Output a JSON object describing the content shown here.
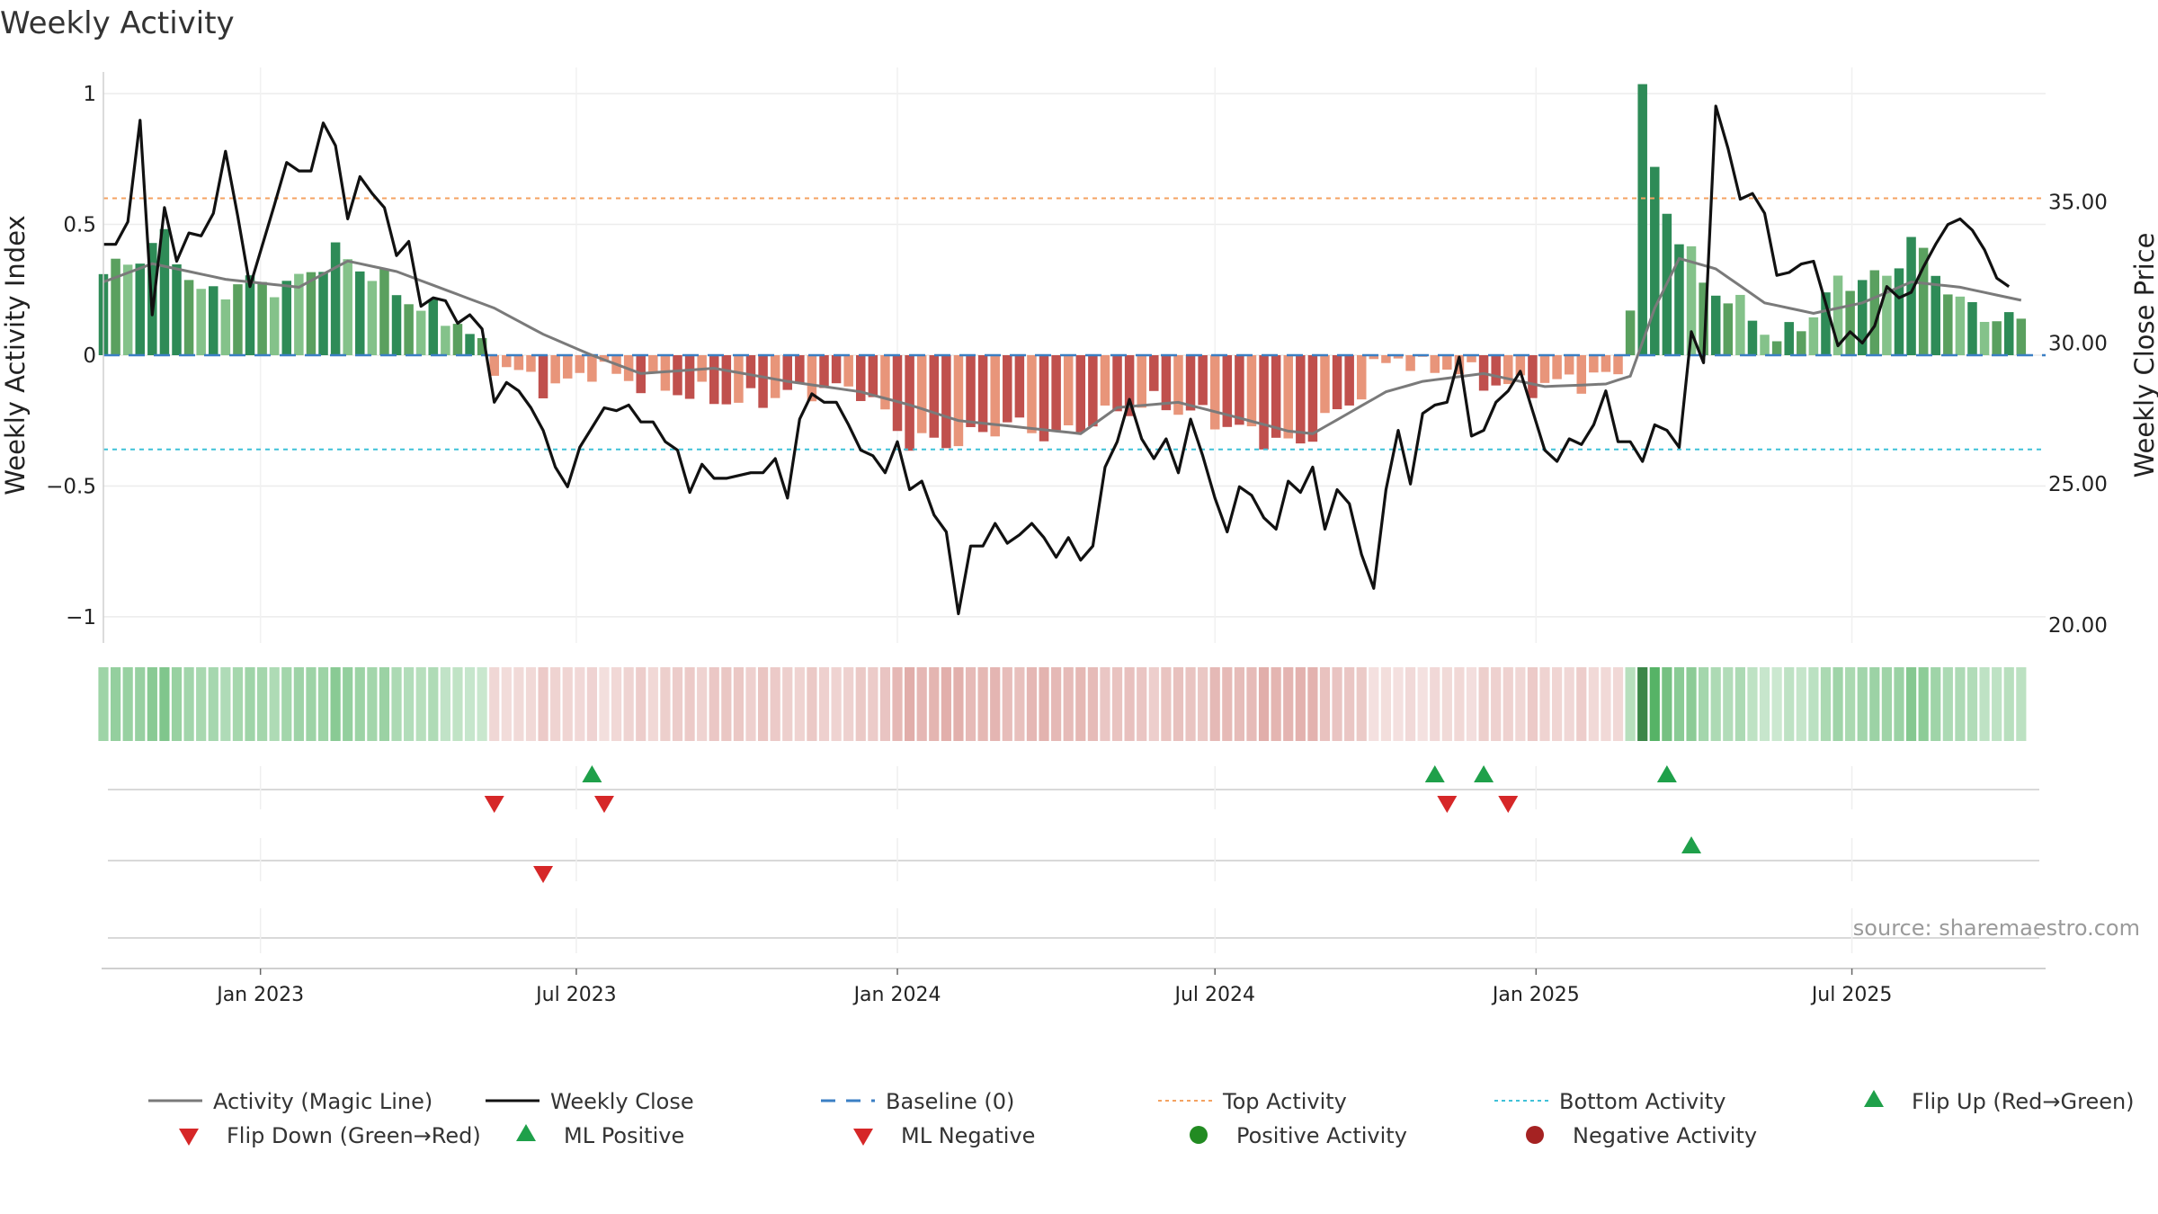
{
  "page": {
    "title": "Weekly Activity"
  },
  "chart_data": {
    "type": "bar",
    "title": "Weekly Activity",
    "ylabel_left": "Weekly Activity Index",
    "ylabel_right": "Weekly Close Price",
    "ylim_left": [
      -1.1,
      1.1
    ],
    "ylim_right": [
      20.0,
      38.4
    ],
    "yticks_left": [
      1,
      0.5,
      0,
      -0.5,
      -1
    ],
    "ytick_labels_left": [
      "1",
      "0.5",
      "0",
      "−0.5",
      "−1"
    ],
    "yticks_right": [
      35,
      30,
      25,
      20
    ],
    "ytick_labels_right": [
      "35.00",
      "30.00",
      "25.00",
      "20.00"
    ],
    "x_range": [
      "2022-10-03",
      "2025-10-20"
    ],
    "x_ticks": [
      {
        "date": "2023-01-01",
        "label": "Jan 2023"
      },
      {
        "date": "2023-07-01",
        "label": "Jul 2023"
      },
      {
        "date": "2024-01-01",
        "label": "Jan 2024"
      },
      {
        "date": "2024-07-01",
        "label": "Jul 2024"
      },
      {
        "date": "2025-01-01",
        "label": "Jan 2025"
      },
      {
        "date": "2025-07-01",
        "label": "Jul 2025"
      }
    ],
    "reference_lines": {
      "baseline": 0,
      "top_activity": 0.6,
      "bottom_activity": -0.36
    },
    "start_date": "2022-10-03",
    "week_step_days": 7,
    "weeks": 158,
    "activity_knots": [
      [
        0,
        0.31
      ],
      [
        3,
        0.38
      ],
      [
        5,
        0.45
      ],
      [
        8,
        0.23
      ],
      [
        12,
        0.28
      ],
      [
        15,
        0.26
      ],
      [
        19,
        0.39
      ],
      [
        22,
        0.31
      ],
      [
        26,
        0.18
      ],
      [
        29,
        0.13
      ],
      [
        32,
        -0.03
      ],
      [
        37,
        -0.13
      ],
      [
        40,
        -0.05
      ],
      [
        45,
        -0.12
      ],
      [
        52,
        -0.18
      ],
      [
        58,
        -0.13
      ],
      [
        62,
        -0.13
      ],
      [
        66,
        -0.33
      ],
      [
        70,
        -0.33
      ],
      [
        74,
        -0.26
      ],
      [
        78,
        -0.31
      ],
      [
        82,
        -0.23
      ],
      [
        86,
        -0.18
      ],
      [
        90,
        -0.23
      ],
      [
        94,
        -0.3
      ],
      [
        98,
        -0.35
      ],
      [
        99,
        -0.28
      ],
      [
        102,
        -0.19
      ],
      [
        104,
        -0.06
      ],
      [
        106,
        0.0
      ],
      [
        108,
        -0.06
      ],
      [
        110,
        -0.04
      ],
      [
        113,
        -0.1
      ],
      [
        116,
        -0.12
      ],
      [
        120,
        -0.1
      ],
      [
        123,
        -0.08
      ],
      [
        124,
        -0.08
      ],
      [
        125,
        0.22
      ],
      [
        126,
        1.0
      ],
      [
        127,
        0.71
      ],
      [
        128,
        0.55
      ],
      [
        131,
        0.28
      ],
      [
        135,
        0.15
      ],
      [
        137,
        0.05
      ],
      [
        140,
        0.16
      ],
      [
        142,
        0.28
      ],
      [
        146,
        0.3
      ],
      [
        148,
        0.44
      ],
      [
        152,
        0.2
      ],
      [
        155,
        0.14
      ],
      [
        157,
        0.13
      ]
    ],
    "magic_line_knots": [
      [
        0,
        0.28
      ],
      [
        4,
        0.35
      ],
      [
        10,
        0.29
      ],
      [
        16,
        0.26
      ],
      [
        20,
        0.36
      ],
      [
        24,
        0.32
      ],
      [
        28,
        0.25
      ],
      [
        32,
        0.18
      ],
      [
        36,
        0.08
      ],
      [
        40,
        0.0
      ],
      [
        44,
        -0.07
      ],
      [
        50,
        -0.05
      ],
      [
        56,
        -0.1
      ],
      [
        62,
        -0.14
      ],
      [
        66,
        -0.19
      ],
      [
        70,
        -0.25
      ],
      [
        76,
        -0.28
      ],
      [
        80,
        -0.3
      ],
      [
        83,
        -0.2
      ],
      [
        88,
        -0.18
      ],
      [
        93,
        -0.24
      ],
      [
        97,
        -0.29
      ],
      [
        99,
        -0.3
      ],
      [
        102,
        -0.22
      ],
      [
        105,
        -0.14
      ],
      [
        108,
        -0.1
      ],
      [
        113,
        -0.07
      ],
      [
        118,
        -0.12
      ],
      [
        123,
        -0.11
      ],
      [
        125,
        -0.08
      ],
      [
        127,
        0.18
      ],
      [
        129,
        0.37
      ],
      [
        132,
        0.33
      ],
      [
        136,
        0.2
      ],
      [
        140,
        0.16
      ],
      [
        144,
        0.2
      ],
      [
        148,
        0.28
      ],
      [
        152,
        0.26
      ],
      [
        157,
        0.21
      ]
    ],
    "close_knots": [
      [
        0,
        33.5
      ],
      [
        1,
        33.5
      ],
      [
        2,
        34.3
      ],
      [
        3,
        37.9
      ],
      [
        4,
        31.0
      ],
      [
        5,
        34.8
      ],
      [
        6,
        32.9
      ],
      [
        7,
        33.9
      ],
      [
        8,
        33.8
      ],
      [
        9,
        34.6
      ],
      [
        10,
        36.8
      ],
      [
        11,
        34.5
      ],
      [
        12,
        32.0
      ],
      [
        14,
        34.9
      ],
      [
        15,
        36.4
      ],
      [
        16,
        36.1
      ],
      [
        17,
        36.1
      ],
      [
        18,
        37.8
      ],
      [
        19,
        37.0
      ],
      [
        20,
        34.4
      ],
      [
        21,
        35.9
      ],
      [
        22,
        35.3
      ],
      [
        23,
        34.8
      ],
      [
        24,
        33.1
      ],
      [
        25,
        33.6
      ],
      [
        26,
        31.3
      ],
      [
        27,
        31.6
      ],
      [
        28,
        31.5
      ],
      [
        29,
        30.7
      ],
      [
        30,
        31.0
      ],
      [
        31,
        30.5
      ],
      [
        32,
        27.9
      ],
      [
        33,
        28.6
      ],
      [
        34,
        28.3
      ],
      [
        35,
        27.7
      ],
      [
        36,
        26.9
      ],
      [
        37,
        25.6
      ],
      [
        38,
        24.9
      ],
      [
        39,
        26.3
      ],
      [
        40,
        27.0
      ],
      [
        41,
        27.7
      ],
      [
        42,
        27.6
      ],
      [
        43,
        27.8
      ],
      [
        44,
        27.2
      ],
      [
        45,
        27.2
      ],
      [
        46,
        26.5
      ],
      [
        47,
        26.2
      ],
      [
        48,
        24.7
      ],
      [
        49,
        25.7
      ],
      [
        50,
        25.2
      ],
      [
        51,
        25.2
      ],
      [
        52,
        25.3
      ],
      [
        53,
        25.4
      ],
      [
        54,
        25.4
      ],
      [
        55,
        25.9
      ],
      [
        56,
        24.5
      ],
      [
        57,
        27.3
      ],
      [
        58,
        28.2
      ],
      [
        59,
        27.9
      ],
      [
        60,
        27.9
      ],
      [
        61,
        27.1
      ],
      [
        62,
        26.2
      ],
      [
        63,
        26.0
      ],
      [
        64,
        25.4
      ],
      [
        65,
        26.5
      ],
      [
        66,
        24.8
      ],
      [
        67,
        25.1
      ],
      [
        68,
        23.9
      ],
      [
        69,
        23.3
      ],
      [
        70,
        20.4
      ],
      [
        71,
        22.8
      ],
      [
        72,
        22.8
      ],
      [
        73,
        23.6
      ],
      [
        74,
        22.9
      ],
      [
        75,
        23.2
      ],
      [
        76,
        23.6
      ],
      [
        77,
        23.1
      ],
      [
        78,
        22.4
      ],
      [
        79,
        23.1
      ],
      [
        80,
        22.3
      ],
      [
        81,
        22.8
      ],
      [
        82,
        25.6
      ],
      [
        83,
        26.5
      ],
      [
        84,
        28.0
      ],
      [
        85,
        26.6
      ],
      [
        86,
        25.9
      ],
      [
        87,
        26.6
      ],
      [
        88,
        25.4
      ],
      [
        89,
        27.3
      ],
      [
        90,
        26.0
      ],
      [
        91,
        24.5
      ],
      [
        92,
        23.3
      ],
      [
        93,
        24.9
      ],
      [
        94,
        24.6
      ],
      [
        95,
        23.8
      ],
      [
        96,
        23.4
      ],
      [
        97,
        25.1
      ],
      [
        98,
        24.7
      ],
      [
        99,
        25.6
      ],
      [
        100,
        23.4
      ],
      [
        101,
        24.8
      ],
      [
        102,
        24.3
      ],
      [
        103,
        22.5
      ],
      [
        104,
        21.3
      ],
      [
        105,
        24.8
      ],
      [
        106,
        26.9
      ],
      [
        107,
        25.0
      ],
      [
        108,
        27.5
      ],
      [
        109,
        27.8
      ],
      [
        110,
        27.9
      ],
      [
        111,
        29.5
      ],
      [
        112,
        26.7
      ],
      [
        113,
        26.9
      ],
      [
        114,
        27.9
      ],
      [
        115,
        28.3
      ],
      [
        116,
        29.0
      ],
      [
        117,
        27.6
      ],
      [
        118,
        26.2
      ],
      [
        119,
        25.8
      ],
      [
        120,
        26.6
      ],
      [
        121,
        26.4
      ],
      [
        122,
        27.1
      ],
      [
        123,
        28.3
      ],
      [
        124,
        26.5
      ],
      [
        125,
        26.5
      ],
      [
        126,
        25.8
      ],
      [
        127,
        27.1
      ],
      [
        128,
        26.9
      ],
      [
        129,
        26.3
      ],
      [
        130,
        30.4
      ],
      [
        131,
        29.3
      ],
      [
        132,
        38.4
      ],
      [
        133,
        36.9
      ],
      [
        134,
        35.1
      ],
      [
        135,
        35.3
      ],
      [
        136,
        34.6
      ],
      [
        137,
        32.4
      ],
      [
        138,
        32.5
      ],
      [
        139,
        32.8
      ],
      [
        140,
        32.9
      ],
      [
        141,
        31.4
      ],
      [
        142,
        29.9
      ],
      [
        143,
        30.4
      ],
      [
        144,
        30.0
      ],
      [
        145,
        30.6
      ],
      [
        146,
        32.0
      ],
      [
        147,
        31.6
      ],
      [
        148,
        31.8
      ],
      [
        149,
        32.7
      ],
      [
        150,
        33.5
      ],
      [
        151,
        34.2
      ],
      [
        152,
        34.4
      ],
      [
        153,
        34.0
      ],
      [
        154,
        33.3
      ],
      [
        155,
        32.3
      ],
      [
        156,
        32.0
      ]
    ],
    "heatmap_strip": "weekly activity color strip (green = positive, red = negative)",
    "flip_up_weeks": [
      40,
      109,
      113,
      128
    ],
    "flip_down_weeks": [
      32,
      41,
      110,
      115
    ],
    "ml_positive_weeks": [
      130
    ],
    "ml_negative_weeks": [
      36
    ]
  },
  "colors": {
    "pos_strong": "#2e8b57",
    "pos_medium": "#5aa05f",
    "pos_light": "#84c28a",
    "neg_strong": "#c0504d",
    "neg_medium": "#d06a62",
    "neg_light": "#e8957a",
    "magic_line": "#7a7a7a",
    "close_line": "#111111",
    "baseline": "#3b7fc4",
    "top_activity": "#f4a261",
    "bottom_activity": "#3fc1d8",
    "flip_up": "#1fa04a",
    "flip_down": "#d62728"
  },
  "annotation": {
    "source": "source: sharemaestro.com"
  },
  "legend": [
    {
      "label": "Activity (Magic Line)",
      "kind": "line-gray"
    },
    {
      "label": "Weekly Close",
      "kind": "line-black"
    },
    {
      "label": "Baseline (0)",
      "kind": "line-dash-blue"
    },
    {
      "label": "Top Activity",
      "kind": "line-dot-orange"
    },
    {
      "label": "Bottom Activity",
      "kind": "line-dot-cyan"
    },
    {
      "label": "Flip Up (Red→Green)",
      "kind": "tri-up-green"
    },
    {
      "label": "Flip Down (Green→Red)",
      "kind": "tri-down-red"
    },
    {
      "label": "ML Positive",
      "kind": "tri-up-green"
    },
    {
      "label": "ML Negative",
      "kind": "tri-down-red"
    },
    {
      "label": "Positive Activity",
      "kind": "dot-green"
    },
    {
      "label": "Negative Activity",
      "kind": "dot-red"
    }
  ]
}
